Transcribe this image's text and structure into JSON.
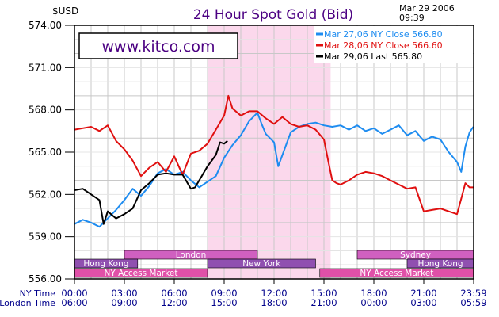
{
  "chart_data": {
    "type": "line",
    "title": "24 Hour Spot Gold (Bid)",
    "currency_label": "$USD",
    "date_label": "Mar 29 2006",
    "time_label": "09:39",
    "watermark": "www.kitco.com",
    "ylim": [
      556.0,
      574.0
    ],
    "yticks": [
      "574.00",
      "571.00",
      "568.00",
      "565.00",
      "562.00",
      "559.00",
      "556.00"
    ],
    "xrange_hours": [
      0,
      24
    ],
    "x_axis_rows": [
      {
        "label": "NY Time",
        "ticks": [
          "00:00",
          "03:00",
          "06:00",
          "09:00",
          "12:00",
          "15:00",
          "18:00",
          "21:00",
          "23:59"
        ]
      },
      {
        "label": "London Time",
        "ticks": [
          "06:00",
          "09:00",
          "12:00",
          "15:00",
          "18:00",
          "21:00",
          "00:00",
          "03:00",
          "05:59"
        ]
      }
    ],
    "shaded_session_hours": [
      8.0,
      15.4
    ],
    "markets": [
      {
        "name": "London",
        "row": 1,
        "start": 3.0,
        "end": 11.0,
        "color": "#d060c0"
      },
      {
        "name": "Sydney",
        "row": 1,
        "start": 17.0,
        "end": 24.0,
        "color": "#d060c0"
      },
      {
        "name": "Hong Kong",
        "row": 2,
        "start": 0.0,
        "end": 3.8,
        "color": "#9050b0"
      },
      {
        "name": "New York",
        "row": 2,
        "start": 8.0,
        "end": 14.5,
        "color": "#9050b0"
      },
      {
        "name": "Hong Kong",
        "row": 2,
        "start": 20.0,
        "end": 24.0,
        "color": "#9050b0"
      },
      {
        "name": "NY Access Market",
        "row": 3,
        "start": 0.0,
        "end": 8.0,
        "color": "#e050a8"
      },
      {
        "name": "NY Access Market",
        "row": 3,
        "start": 14.75,
        "end": 24.0,
        "color": "#e050a8"
      }
    ],
    "series": [
      {
        "name": "Mar 27,06",
        "legend_text": "NY Close 566.80",
        "color": "#1e8cf0",
        "points": [
          [
            0,
            559.9
          ],
          [
            0.5,
            560.2
          ],
          [
            1,
            560.0
          ],
          [
            1.5,
            559.7
          ],
          [
            2,
            560.3
          ],
          [
            2.5,
            560.9
          ],
          [
            3,
            561.6
          ],
          [
            3.5,
            562.4
          ],
          [
            4,
            561.9
          ],
          [
            4.5,
            562.6
          ],
          [
            5,
            563.5
          ],
          [
            5.5,
            563.8
          ],
          [
            6,
            563.4
          ],
          [
            6.5,
            563.6
          ],
          [
            7,
            563.0
          ],
          [
            7.5,
            562.5
          ],
          [
            8,
            562.9
          ],
          [
            8.5,
            563.3
          ],
          [
            9,
            564.6
          ],
          [
            9.5,
            565.5
          ],
          [
            10,
            566.2
          ],
          [
            10.5,
            567.2
          ],
          [
            11,
            567.8
          ],
          [
            11.25,
            567.0
          ],
          [
            11.5,
            566.3
          ],
          [
            12,
            565.7
          ],
          [
            12.25,
            564.0
          ],
          [
            12.5,
            564.8
          ],
          [
            13,
            566.4
          ],
          [
            13.5,
            566.8
          ],
          [
            14,
            567.0
          ],
          [
            14.5,
            567.1
          ],
          [
            15,
            566.9
          ],
          [
            15.5,
            566.8
          ],
          [
            16,
            566.9
          ],
          [
            16.5,
            566.6
          ],
          [
            17,
            566.9
          ],
          [
            17.5,
            566.5
          ],
          [
            18,
            566.7
          ],
          [
            18.5,
            566.3
          ],
          [
            19,
            566.6
          ],
          [
            19.5,
            566.9
          ],
          [
            20,
            566.2
          ],
          [
            20.5,
            566.5
          ],
          [
            21,
            565.8
          ],
          [
            21.5,
            566.1
          ],
          [
            22,
            565.9
          ],
          [
            22.5,
            565.0
          ],
          [
            23,
            564.3
          ],
          [
            23.25,
            563.6
          ],
          [
            23.5,
            565.4
          ],
          [
            23.75,
            566.4
          ],
          [
            23.98,
            566.8
          ]
        ]
      },
      {
        "name": "Mar 28,06",
        "legend_text": "NY Close 566.60",
        "color": "#e01010",
        "points": [
          [
            0,
            566.6
          ],
          [
            0.5,
            566.7
          ],
          [
            1,
            566.8
          ],
          [
            1.5,
            566.5
          ],
          [
            2,
            566.9
          ],
          [
            2.5,
            565.8
          ],
          [
            3,
            565.2
          ],
          [
            3.5,
            564.4
          ],
          [
            4,
            563.3
          ],
          [
            4.5,
            563.9
          ],
          [
            5,
            564.3
          ],
          [
            5.5,
            563.6
          ],
          [
            6,
            564.7
          ],
          [
            6.5,
            563.4
          ],
          [
            7,
            564.9
          ],
          [
            7.5,
            565.1
          ],
          [
            8,
            565.6
          ],
          [
            8.5,
            566.6
          ],
          [
            9,
            567.6
          ],
          [
            9.25,
            569.0
          ],
          [
            9.5,
            568.1
          ],
          [
            10,
            567.6
          ],
          [
            10.5,
            567.9
          ],
          [
            11,
            567.9
          ],
          [
            11.5,
            567.4
          ],
          [
            12,
            567.0
          ],
          [
            12.5,
            567.5
          ],
          [
            13,
            567.0
          ],
          [
            13.5,
            566.8
          ],
          [
            14,
            566.9
          ],
          [
            14.5,
            566.6
          ],
          [
            15,
            565.9
          ],
          [
            15.25,
            564.4
          ],
          [
            15.5,
            563.0
          ],
          [
            15.75,
            562.8
          ],
          [
            16,
            562.7
          ],
          [
            16.5,
            563.0
          ],
          [
            17,
            563.4
          ],
          [
            17.5,
            563.6
          ],
          [
            18,
            563.5
          ],
          [
            18.5,
            563.3
          ],
          [
            19,
            563.0
          ],
          [
            19.5,
            562.7
          ],
          [
            20,
            562.4
          ],
          [
            20.5,
            562.5
          ],
          [
            21,
            560.8
          ],
          [
            21.5,
            560.9
          ],
          [
            22,
            561.0
          ],
          [
            22.5,
            560.8
          ],
          [
            23,
            560.6
          ],
          [
            23.25,
            561.7
          ],
          [
            23.5,
            562.8
          ],
          [
            23.75,
            562.5
          ],
          [
            23.98,
            562.5
          ]
        ]
      },
      {
        "name": "Mar 29,06",
        "legend_text": "Last 565.80",
        "color": "#000000",
        "points": [
          [
            0,
            562.3
          ],
          [
            0.5,
            562.4
          ],
          [
            1,
            562.0
          ],
          [
            1.5,
            561.6
          ],
          [
            1.75,
            559.9
          ],
          [
            2,
            560.8
          ],
          [
            2.5,
            560.3
          ],
          [
            3,
            560.6
          ],
          [
            3.5,
            561.0
          ],
          [
            4,
            562.3
          ],
          [
            4.5,
            562.8
          ],
          [
            5,
            563.4
          ],
          [
            5.5,
            563.5
          ],
          [
            6,
            563.4
          ],
          [
            6.5,
            563.4
          ],
          [
            7,
            562.4
          ],
          [
            7.25,
            562.5
          ],
          [
            7.5,
            563.0
          ],
          [
            8,
            564.0
          ],
          [
            8.5,
            564.8
          ],
          [
            8.75,
            565.7
          ],
          [
            9.0,
            565.6
          ],
          [
            9.2,
            565.8
          ]
        ]
      }
    ]
  }
}
